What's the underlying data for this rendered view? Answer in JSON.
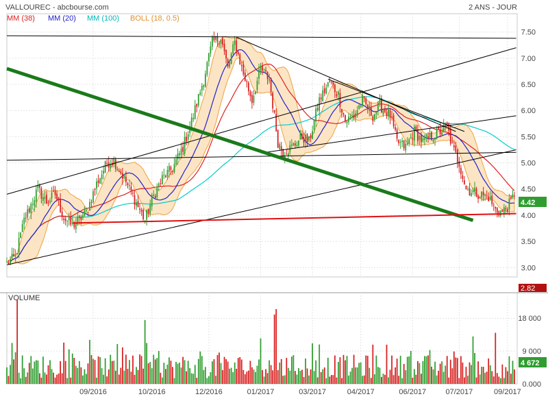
{
  "header": {
    "title": "VALLOUREC - abcbourse.com",
    "period": "2 ANS - JOUR"
  },
  "legend": [
    {
      "label": "MM (38)",
      "color": "#e02020"
    },
    {
      "label": "MM (20)",
      "color": "#2020d0"
    },
    {
      "label": "MM (100)",
      "color": "#00cccc"
    },
    {
      "label": "BOLL (18, 0.5)",
      "color": "#f0a040"
    }
  ],
  "price_badges": {
    "last": "4.42",
    "low": "2.82"
  },
  "volume_panel": {
    "title": "VOLUME",
    "last_badge": "4 672",
    "ticks": [
      "18 000",
      "9 000",
      "0.000"
    ]
  },
  "chart_data": {
    "type": "candlestick",
    "title": "VALLOUREC",
    "x_tick_labels": [
      "09/2016",
      "10/2016",
      "12/2016",
      "01/2017",
      "03/2017",
      "04/2017",
      "06/2017",
      "07/2017",
      "09/2017"
    ],
    "price_axis": {
      "ticks": [
        "7.50",
        "7.00",
        "6.50",
        "6.00",
        "5.50",
        "5.00",
        "4.50",
        "4.00",
        "3.50",
        "3.00"
      ],
      "ylim": [
        2.82,
        7.85
      ]
    },
    "volume_axis": {
      "ticks": [
        "18 000",
        "9 000",
        "0.000"
      ],
      "ylim": [
        0,
        25000
      ]
    },
    "price_path": [
      [
        0,
        3.08
      ],
      [
        5,
        3.2
      ],
      [
        10,
        3.9
      ],
      [
        18,
        4.5
      ],
      [
        23,
        4.25
      ],
      [
        28,
        4.4
      ],
      [
        33,
        3.95
      ],
      [
        38,
        3.8
      ],
      [
        46,
        4.05
      ],
      [
        52,
        4.6
      ],
      [
        58,
        5.0
      ],
      [
        62,
        5.05
      ],
      [
        68,
        4.7
      ],
      [
        74,
        4.3
      ],
      [
        80,
        3.9
      ],
      [
        84,
        4.3
      ],
      [
        90,
        4.7
      ],
      [
        96,
        4.9
      ],
      [
        102,
        5.3
      ],
      [
        108,
        5.9
      ],
      [
        114,
        6.6
      ],
      [
        119,
        7.3
      ],
      [
        124,
        7.4
      ],
      [
        128,
        6.8
      ],
      [
        132,
        7.3
      ],
      [
        137,
        6.7
      ],
      [
        142,
        6.2
      ],
      [
        147,
        6.8
      ],
      [
        152,
        6.6
      ],
      [
        157,
        5.4
      ],
      [
        160,
        5.2
      ],
      [
        165,
        5.3
      ],
      [
        171,
        5.5
      ],
      [
        175,
        5.4
      ],
      [
        181,
        6.2
      ],
      [
        187,
        6.55
      ],
      [
        192,
        6.3
      ],
      [
        196,
        5.8
      ],
      [
        201,
        5.9
      ],
      [
        206,
        6.2
      ],
      [
        212,
        5.9
      ],
      [
        216,
        6.1
      ],
      [
        222,
        5.9
      ],
      [
        226,
        5.4
      ],
      [
        231,
        5.3
      ],
      [
        236,
        5.6
      ],
      [
        241,
        5.4
      ],
      [
        246,
        5.5
      ],
      [
        251,
        5.6
      ],
      [
        255,
        5.7
      ],
      [
        258,
        5.3
      ],
      [
        262,
        5.0
      ],
      [
        266,
        4.5
      ],
      [
        270,
        4.45
      ],
      [
        274,
        4.4
      ],
      [
        279,
        4.35
      ],
      [
        283,
        4.1
      ],
      [
        287,
        4.05
      ],
      [
        292,
        4.25
      ],
      [
        294,
        4.42
      ]
    ],
    "series": [
      {
        "name": "MM (38)",
        "smoothing": 38,
        "color": "#e02020"
      },
      {
        "name": "MM (20)",
        "smoothing": 20,
        "color": "#2020d0"
      },
      {
        "name": "MM (100)",
        "smoothing": 100,
        "color": "#00cccc"
      },
      {
        "name": "BOLL (18, 0.5)",
        "smoothing": 18,
        "color": "#f0a040"
      }
    ],
    "volume_spikes": [
      {
        "day": 6,
        "value": 23000
      },
      {
        "day": 80,
        "value": 17500
      },
      {
        "day": 155,
        "value": 19000
      },
      {
        "day": 156,
        "value": 20500
      },
      {
        "day": 283,
        "value": 14000
      }
    ],
    "trendlines": [
      {
        "color": "#000000",
        "width": 1,
        "from": [
          0,
          7.43
        ],
        "to": [
          295,
          7.38
        ]
      },
      {
        "color": "#000000",
        "width": 1,
        "from": [
          0,
          4.4
        ],
        "to": [
          295,
          7.2
        ]
      },
      {
        "color": "#000000",
        "width": 1,
        "from": [
          0,
          3.05
        ],
        "to": [
          295,
          5.25
        ]
      },
      {
        "color": "#000000",
        "width": 1,
        "from": [
          0,
          5.05
        ],
        "to": [
          295,
          5.2
        ]
      },
      {
        "color": "#000000",
        "width": 1,
        "from": [
          150,
          5.2
        ],
        "to": [
          295,
          5.9
        ]
      },
      {
        "color": "#000000",
        "width": 1,
        "from": [
          133,
          7.4
        ],
        "to": [
          260,
          5.6
        ]
      },
      {
        "color": "#000000",
        "width": 1,
        "from": [
          186,
          6.6
        ],
        "to": [
          265,
          5.6
        ]
      },
      {
        "color": "#1a7a1a",
        "width": 5,
        "from": [
          0,
          6.8
        ],
        "to": [
          270,
          3.9
        ]
      },
      {
        "color": "#e01010",
        "width": 2,
        "from": [
          38,
          3.85
        ],
        "to": [
          295,
          4.03
        ]
      }
    ]
  }
}
